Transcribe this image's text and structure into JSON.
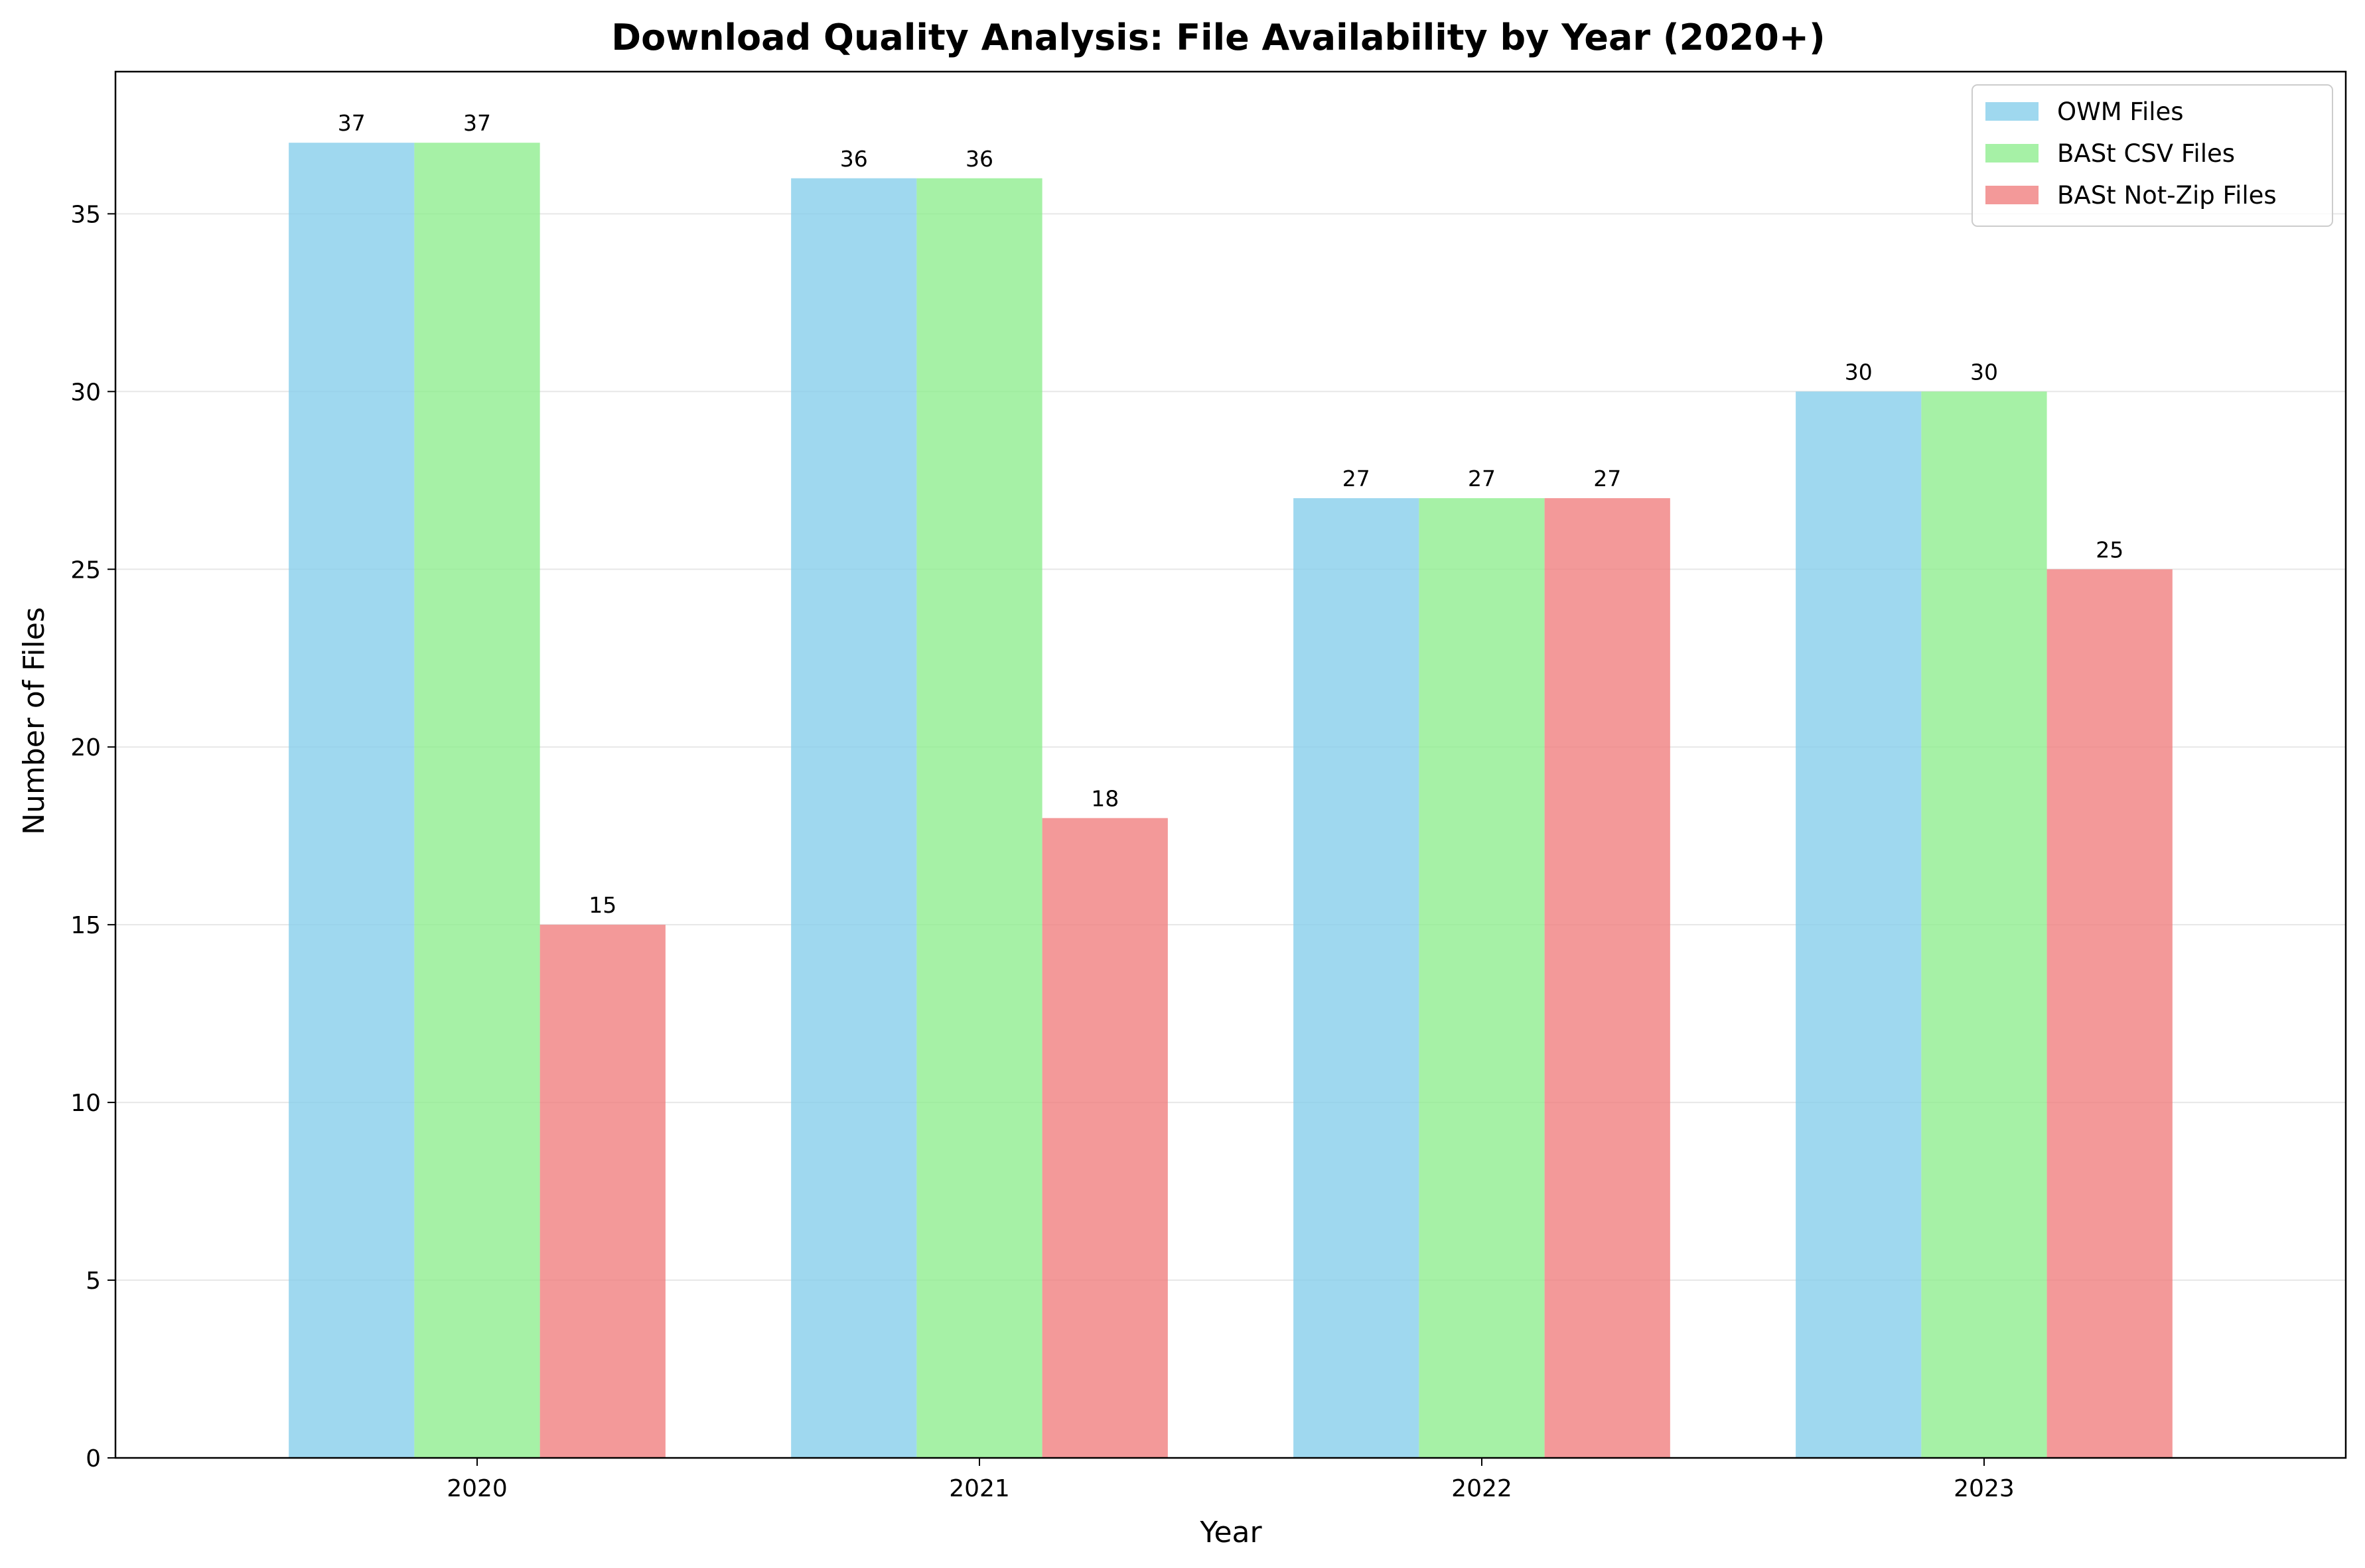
{
  "chart_data": {
    "type": "bar",
    "title": "Download Quality Analysis: File Availability by Year (2020+)",
    "xlabel": "Year",
    "ylabel": "Number of Files",
    "categories": [
      "2020",
      "2021",
      "2022",
      "2023"
    ],
    "ylim": [
      0,
      39
    ],
    "yticks": [
      0,
      5,
      10,
      15,
      20,
      25,
      30,
      35
    ],
    "grid": "horizontal",
    "legend_position": "top-right",
    "series": [
      {
        "name": "OWM Files",
        "color": "#87CEEB",
        "values": [
          37,
          36,
          27,
          30
        ]
      },
      {
        "name": "BASt CSV Files",
        "color": "#90EE90",
        "values": [
          37,
          36,
          27,
          30
        ]
      },
      {
        "name": "BASt Not-Zip Files",
        "color": "#F08080",
        "values": [
          15,
          18,
          27,
          25
        ]
      }
    ]
  }
}
